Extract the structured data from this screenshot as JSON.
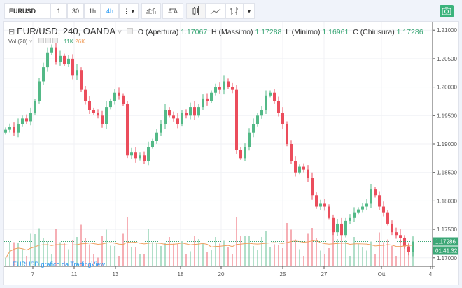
{
  "toolbar": {
    "symbol": "EURUSD",
    "intervals": [
      "1",
      "30",
      "1h",
      "4h"
    ],
    "active_interval": "4h",
    "more": "⋮",
    "dropdown": "▾"
  },
  "legend": {
    "title": "EUR/USD, 240, OANDA",
    "caret": "˅",
    "open_label": "O (Apertura)",
    "open": "1.17067",
    "high_label": "H (Massimo)",
    "high": "1.17288",
    "low_label": "L (Minimo)",
    "low": "1.16961",
    "close_label": "C (Chiusura)",
    "close": "1.17286"
  },
  "volume": {
    "label": "Vol (20)",
    "caret": "˅",
    "value": "11K",
    "ma": "26K"
  },
  "watermark": "EURUSD grafico da TradingView",
  "price_badge": "1.17286",
  "countdown": "01:41:32",
  "colors": {
    "up": "#53b987",
    "down": "#eb4d5c",
    "ma": "#f0a060",
    "badge": "#3ba776"
  },
  "chart_data": {
    "type": "candlestick",
    "y_ticks": [
      "1.21000",
      "1.20500",
      "1.20000",
      "1.19500",
      "1.19000",
      "1.18500",
      "1.18000",
      "1.17500",
      "1.17000"
    ],
    "ylim": [
      1.1685,
      1.2115
    ],
    "x_ticks": [
      "7",
      "11",
      "13",
      "18",
      "20",
      "25",
      "27",
      "Ott",
      "4"
    ],
    "first_open": 1.192,
    "closes": [
      1.1925,
      1.193,
      1.192,
      1.1935,
      1.1945,
      1.194,
      1.1955,
      1.1975,
      1.201,
      1.2035,
      1.206,
      1.207,
      1.2045,
      1.2055,
      1.204,
      1.205,
      1.202,
      1.203,
      1.1995,
      1.1975,
      1.196,
      1.1955,
      1.195,
      1.1935,
      1.1965,
      1.1975,
      1.199,
      1.1985,
      1.197,
      1.188,
      1.1885,
      1.1875,
      1.188,
      1.187,
      1.1895,
      1.1905,
      1.192,
      1.1935,
      1.196,
      1.195,
      1.1945,
      1.1935,
      1.1955,
      1.195,
      1.1965,
      1.195,
      1.1965,
      1.198,
      1.1975,
      1.199,
      1.2,
      1.1995,
      1.201,
      1.2,
      1.1995,
      1.189,
      1.1875,
      1.1895,
      1.192,
      1.1935,
      1.195,
      1.196,
      1.1985,
      1.199,
      1.1975,
      1.1955,
      1.1935,
      1.19,
      1.187,
      1.185,
      1.186,
      1.1855,
      1.184,
      1.181,
      1.179,
      1.1795,
      1.179,
      1.177,
      1.1745,
      1.176,
      1.174,
      1.1765,
      1.177,
      1.178,
      1.1785,
      1.179,
      1.1795,
      1.182,
      1.181,
      1.179,
      1.178,
      1.176,
      1.1745,
      1.174,
      1.1735,
      1.172,
      1.171,
      1.17286
    ]
  }
}
